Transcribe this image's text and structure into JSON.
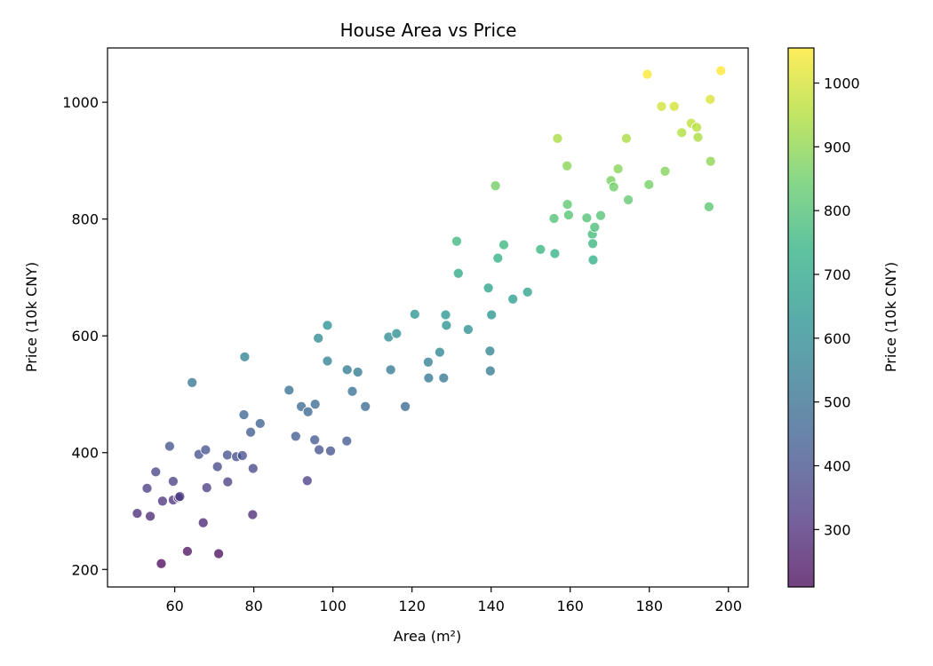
{
  "chart_data": {
    "type": "scatter",
    "title": "House Area vs Price",
    "xlabel": "Area (m²)",
    "ylabel": "Price (10k CNY)",
    "colorbar_label": "Price (10k CNY)",
    "colormap": "viridis",
    "xlim": [
      43,
      205
    ],
    "ylim": [
      170,
      1093
    ],
    "xticks": [
      60,
      80,
      100,
      120,
      140,
      160,
      180,
      200
    ],
    "yticks": [
      200,
      400,
      600,
      800,
      1000
    ],
    "colorbar_range": [
      210,
      1055
    ],
    "colorbar_ticks": [
      300,
      400,
      500,
      600,
      700,
      800,
      900,
      1000
    ],
    "grid": false,
    "points": [
      {
        "x": 50.5,
        "y": 296
      },
      {
        "x": 53.0,
        "y": 339
      },
      {
        "x": 53.8,
        "y": 291
      },
      {
        "x": 55.2,
        "y": 367
      },
      {
        "x": 56.6,
        "y": 210
      },
      {
        "x": 56.9,
        "y": 317
      },
      {
        "x": 58.7,
        "y": 411
      },
      {
        "x": 59.6,
        "y": 351
      },
      {
        "x": 59.6,
        "y": 319
      },
      {
        "x": 60.9,
        "y": 323
      },
      {
        "x": 61.3,
        "y": 325
      },
      {
        "x": 63.2,
        "y": 231
      },
      {
        "x": 64.4,
        "y": 520
      },
      {
        "x": 66.1,
        "y": 397
      },
      {
        "x": 67.2,
        "y": 280
      },
      {
        "x": 67.8,
        "y": 405
      },
      {
        "x": 68.1,
        "y": 340
      },
      {
        "x": 70.8,
        "y": 376
      },
      {
        "x": 71.1,
        "y": 227
      },
      {
        "x": 73.3,
        "y": 396
      },
      {
        "x": 73.4,
        "y": 350
      },
      {
        "x": 75.6,
        "y": 393
      },
      {
        "x": 77.1,
        "y": 395
      },
      {
        "x": 77.5,
        "y": 465
      },
      {
        "x": 77.7,
        "y": 564
      },
      {
        "x": 79.2,
        "y": 435
      },
      {
        "x": 79.7,
        "y": 294
      },
      {
        "x": 79.8,
        "y": 373
      },
      {
        "x": 81.6,
        "y": 450
      },
      {
        "x": 88.9,
        "y": 507
      },
      {
        "x": 90.6,
        "y": 428
      },
      {
        "x": 92.0,
        "y": 479
      },
      {
        "x": 93.5,
        "y": 352
      },
      {
        "x": 93.7,
        "y": 470
      },
      {
        "x": 95.4,
        "y": 422
      },
      {
        "x": 95.5,
        "y": 483
      },
      {
        "x": 96.3,
        "y": 596
      },
      {
        "x": 96.5,
        "y": 405
      },
      {
        "x": 98.6,
        "y": 618
      },
      {
        "x": 98.6,
        "y": 557
      },
      {
        "x": 99.4,
        "y": 403
      },
      {
        "x": 103.5,
        "y": 420
      },
      {
        "x": 103.6,
        "y": 542
      },
      {
        "x": 104.9,
        "y": 505
      },
      {
        "x": 106.3,
        "y": 538
      },
      {
        "x": 108.2,
        "y": 479
      },
      {
        "x": 114.1,
        "y": 598
      },
      {
        "x": 114.6,
        "y": 542
      },
      {
        "x": 116.1,
        "y": 604
      },
      {
        "x": 118.3,
        "y": 479
      },
      {
        "x": 120.7,
        "y": 637
      },
      {
        "x": 124.1,
        "y": 555
      },
      {
        "x": 124.2,
        "y": 528
      },
      {
        "x": 127.0,
        "y": 572
      },
      {
        "x": 128.0,
        "y": 528
      },
      {
        "x": 128.5,
        "y": 636
      },
      {
        "x": 128.7,
        "y": 618
      },
      {
        "x": 131.3,
        "y": 762
      },
      {
        "x": 131.7,
        "y": 707
      },
      {
        "x": 134.2,
        "y": 611
      },
      {
        "x": 139.3,
        "y": 682
      },
      {
        "x": 139.7,
        "y": 574
      },
      {
        "x": 139.8,
        "y": 540
      },
      {
        "x": 140.1,
        "y": 636
      },
      {
        "x": 141.1,
        "y": 857
      },
      {
        "x": 141.7,
        "y": 733
      },
      {
        "x": 143.2,
        "y": 756
      },
      {
        "x": 145.5,
        "y": 663
      },
      {
        "x": 149.2,
        "y": 675
      },
      {
        "x": 152.5,
        "y": 748
      },
      {
        "x": 155.9,
        "y": 801
      },
      {
        "x": 156.1,
        "y": 741
      },
      {
        "x": 156.8,
        "y": 938
      },
      {
        "x": 159.2,
        "y": 891
      },
      {
        "x": 159.3,
        "y": 825
      },
      {
        "x": 159.6,
        "y": 807
      },
      {
        "x": 164.2,
        "y": 802
      },
      {
        "x": 165.6,
        "y": 774
      },
      {
        "x": 165.7,
        "y": 758
      },
      {
        "x": 165.8,
        "y": 730
      },
      {
        "x": 166.2,
        "y": 786
      },
      {
        "x": 167.7,
        "y": 806
      },
      {
        "x": 170.3,
        "y": 866
      },
      {
        "x": 171.0,
        "y": 855
      },
      {
        "x": 172.1,
        "y": 886
      },
      {
        "x": 174.2,
        "y": 938
      },
      {
        "x": 174.7,
        "y": 833
      },
      {
        "x": 179.5,
        "y": 1048
      },
      {
        "x": 179.9,
        "y": 859
      },
      {
        "x": 183.1,
        "y": 993
      },
      {
        "x": 184.0,
        "y": 882
      },
      {
        "x": 186.3,
        "y": 993
      },
      {
        "x": 188.2,
        "y": 948
      },
      {
        "x": 190.6,
        "y": 964
      },
      {
        "x": 192.0,
        "y": 957
      },
      {
        "x": 192.3,
        "y": 940
      },
      {
        "x": 195.1,
        "y": 821
      },
      {
        "x": 195.4,
        "y": 1005
      },
      {
        "x": 195.5,
        "y": 899
      },
      {
        "x": 198.1,
        "y": 1054
      }
    ]
  }
}
